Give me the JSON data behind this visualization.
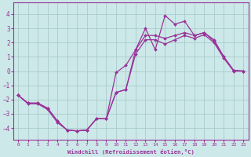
{
  "xlabel": "Windchill (Refroidissement éolien,°C)",
  "bg_color": "#cce8e8",
  "line_color": "#993399",
  "grid_color": "#aacccc",
  "xlim": [
    -0.5,
    23.5
  ],
  "ylim": [
    -4.8,
    4.8
  ],
  "yticks": [
    -4,
    -3,
    -2,
    -1,
    0,
    1,
    2,
    3,
    4
  ],
  "xticks": [
    0,
    1,
    2,
    3,
    4,
    5,
    6,
    7,
    8,
    9,
    10,
    11,
    12,
    13,
    14,
    15,
    16,
    17,
    18,
    19,
    20,
    21,
    22,
    23
  ],
  "hours": [
    0,
    1,
    2,
    3,
    4,
    5,
    6,
    7,
    8,
    9,
    10,
    11,
    12,
    13,
    14,
    15,
    16,
    17,
    18,
    19,
    20,
    21,
    22,
    23
  ],
  "main_y": [
    -1.7,
    -2.3,
    -2.3,
    -2.7,
    -3.6,
    -4.15,
    -4.2,
    -4.15,
    -3.35,
    -3.35,
    -1.5,
    -1.3,
    1.5,
    3.0,
    1.5,
    3.9,
    3.3,
    3.5,
    2.5,
    2.7,
    2.1,
    1.0,
    0.05,
    0.0
  ],
  "line2_y": [
    -1.7,
    -2.25,
    -2.25,
    -2.6,
    -3.5,
    -4.15,
    -4.2,
    -4.15,
    -3.35,
    -3.35,
    -0.1,
    0.4,
    1.5,
    2.5,
    2.5,
    2.3,
    2.5,
    2.7,
    2.5,
    2.7,
    2.2,
    1.0,
    0.05,
    0.0
  ],
  "line3_y": [
    -1.7,
    -2.25,
    -2.25,
    -2.6,
    -3.5,
    -4.15,
    -4.2,
    -4.15,
    -3.35,
    -3.35,
    -1.5,
    -1.3,
    1.2,
    2.2,
    2.2,
    1.9,
    2.2,
    2.5,
    2.3,
    2.55,
    2.0,
    0.9,
    0.0,
    0.0
  ]
}
